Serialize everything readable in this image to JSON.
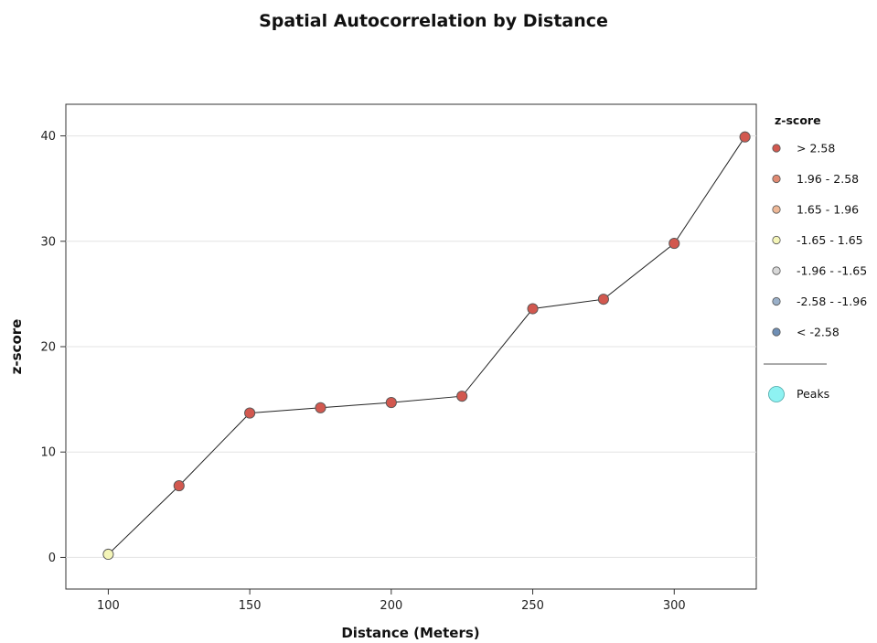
{
  "chart_data": {
    "type": "line",
    "title": "Spatial Autocorrelation by Distance",
    "xlabel": "Distance (Meters)",
    "ylabel": "z-score",
    "xlim": [
      85,
      329
    ],
    "ylim": [
      -3,
      43
    ],
    "xticks": [
      100,
      150,
      200,
      250,
      300
    ],
    "yticks": [
      0,
      10,
      20,
      30,
      40
    ],
    "x_tick_labels": [
      "100",
      "150",
      "200",
      "250",
      "300"
    ],
    "y_tick_labels": [
      "0",
      "10",
      "20",
      "30",
      "40"
    ],
    "grid": true,
    "legend_position": "right",
    "series": [
      {
        "x": [
          100,
          125,
          150,
          175,
          200,
          225,
          250,
          275,
          300,
          325
        ],
        "y": [
          0.3,
          6.8,
          13.7,
          14.2,
          14.7,
          15.3,
          23.6,
          24.5,
          29.8,
          39.9
        ],
        "z_class": [
          "-1.65 - 1.65",
          "> 2.58",
          "> 2.58",
          "> 2.58",
          "> 2.58",
          "> 2.58",
          "> 2.58",
          "> 2.58",
          "> 2.58",
          "> 2.58"
        ]
      }
    ],
    "legend": {
      "title": "z-score",
      "items": [
        {
          "label": "> 2.58",
          "color": "#d2584f"
        },
        {
          "label": "1.96 - 2.58",
          "color": "#e08a72"
        },
        {
          "label": "1.65 - 1.96",
          "color": "#eeb897"
        },
        {
          "label": "-1.65 - 1.65",
          "color": "#f4f5b8"
        },
        {
          "label": "-1.96 - -1.65",
          "color": "#d8d8d8"
        },
        {
          "label": "-2.58 - -1.96",
          "color": "#9ab0c9"
        },
        {
          "label": "< -2.58",
          "color": "#6f8fb5"
        }
      ],
      "peaks": {
        "label": "Peaks",
        "color": "#8ef2f2"
      }
    }
  }
}
